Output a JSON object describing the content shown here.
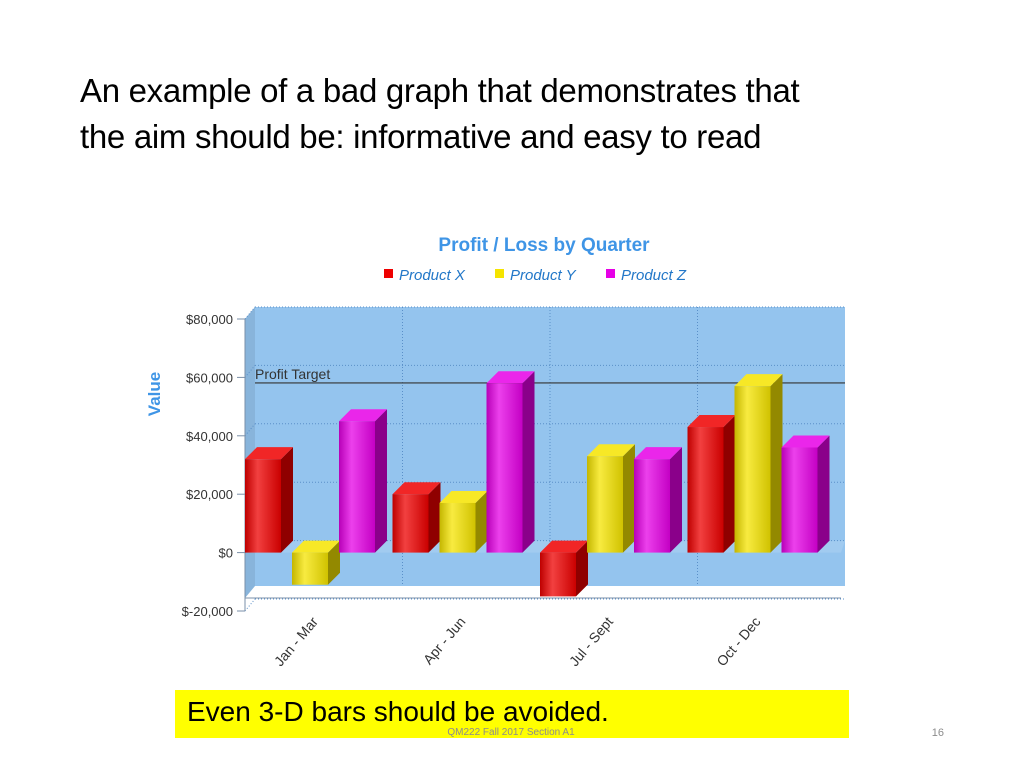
{
  "slide": {
    "title_line1": "An example of a bad graph that demonstrates that",
    "title_line2": "the aim should be: informative and easy to read",
    "callout": "Even 3-D bars should be avoided.",
    "footer": "QM222 Fall 2017 Section A1",
    "page_number": "16"
  },
  "chart_data": {
    "type": "bar",
    "title": "Profit / Loss by Quarter",
    "ylabel": "Value",
    "xlabel": "",
    "categories": [
      "Jan - Mar",
      "Apr - Jun",
      "Jul - Sept",
      "Oct - Dec"
    ],
    "series": [
      {
        "name": "Product X",
        "color": "#ee0000",
        "values": [
          32000,
          20000,
          -15000,
          43000
        ]
      },
      {
        "name": "Product Y",
        "color": "#f5e400",
        "values": [
          -11000,
          17000,
          33000,
          57000
        ]
      },
      {
        "name": "Product Z",
        "color": "#e600e6",
        "values": [
          45000,
          58000,
          32000,
          36000
        ]
      }
    ],
    "ylim": [
      -20000,
      80000
    ],
    "yticks": [
      80000,
      60000,
      40000,
      20000,
      0,
      -20000
    ],
    "ytick_labels": [
      "$80,000",
      "$60,000",
      "$40,000",
      "$20,000",
      "$0",
      "$-20,000"
    ],
    "reference_line": {
      "label": "Profit Target",
      "value": 54000
    },
    "legend_position": "top",
    "grid": true,
    "three_d": true,
    "plot_background": "#94c4ee",
    "title_color": "#3f95e6"
  }
}
